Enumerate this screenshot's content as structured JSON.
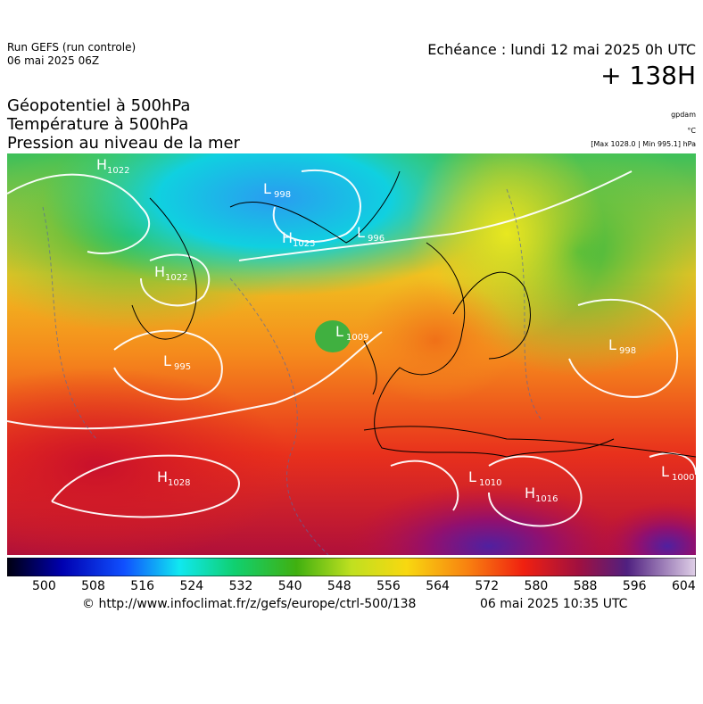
{
  "header": {
    "run": "Run GEFS (run controle)",
    "run_date": "06 mai 2025 06Z",
    "echeance": "Echéance : lundi 12 mai 2025 0h UTC",
    "lead": "+ 138H"
  },
  "titles": [
    "Géopotentiel à 500hPa",
    "Température à 500hPa",
    "Pression au niveau de la mer"
  ],
  "units": [
    "gpdam",
    "°C",
    "[Max 1028.0 | Min 995.1] hPa"
  ],
  "systems": [
    {
      "kind": "H",
      "value": "1022"
    },
    {
      "kind": "L",
      "value": "998"
    },
    {
      "kind": "H",
      "value": "1025"
    },
    {
      "kind": "L",
      "value": "996"
    },
    {
      "kind": "H",
      "value": "1022"
    },
    {
      "kind": "L",
      "value": "1009"
    },
    {
      "kind": "L",
      "value": "995"
    },
    {
      "kind": "H",
      "value": "1028"
    },
    {
      "kind": "L",
      "value": "1010"
    },
    {
      "kind": "H",
      "value": "1016"
    },
    {
      "kind": "L",
      "value": "1000"
    },
    {
      "kind": "L",
      "value": "998"
    }
  ],
  "colorbar": {
    "ticks": [
      500,
      508,
      516,
      524,
      532,
      540,
      548,
      556,
      564,
      572,
      580,
      588,
      596,
      604
    ]
  },
  "footer": {
    "source": "© http://www.infoclimat.fr/z/gefs/europe/ctrl-500/138",
    "generated": "06 mai 2025 10:35 UTC"
  }
}
